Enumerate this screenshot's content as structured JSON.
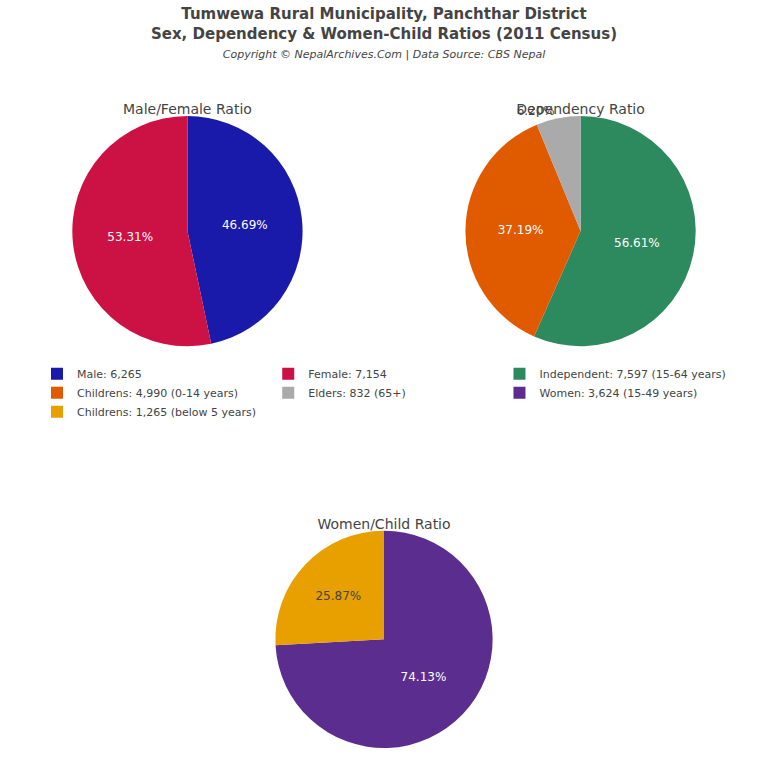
{
  "title": "Tumwewa Rural Municipality, Panchthar District",
  "subtitle": "Sex, Dependency & Women-Child Ratios (2011 Census)",
  "annotations": [
    "Copyright © NepalArchives.Com | Data Source: CBS Nepal"
  ],
  "legend": "center",
  "chart_data": [
    {
      "type": "pie",
      "title": "Male/Female Ratio",
      "categories": [
        "Male: 6,265",
        "Female: 7,154"
      ],
      "values": [
        46.69,
        53.31
      ],
      "value_labels": [
        "46.69%",
        "53.31%"
      ],
      "colors": [
        "#1a1aaa",
        "#cc1144"
      ],
      "data_labels": true
    },
    {
      "type": "pie",
      "title": "Dependency Ratio",
      "categories": [
        "Independent: 7,597 (15-64 years)",
        "Childrens: 4,990 (0-14 years)",
        "Elders: 832 (65+)"
      ],
      "values": [
        56.61,
        37.19,
        6.2
      ],
      "value_labels": [
        "56.61%",
        "37.19%",
        "6.20%"
      ],
      "colors": [
        "#2d8a5e",
        "#e05a00",
        "#aaaaaa"
      ],
      "data_labels": true
    },
    {
      "type": "pie",
      "title": "Women/Child Ratio",
      "categories": [
        "Women: 3,624 (15-49 years)",
        "Childrens: 1,265 (below 5 years)"
      ],
      "values": [
        74.13,
        25.87
      ],
      "value_labels": [
        "74.13%",
        "25.87%"
      ],
      "colors": [
        "#5b2d8e",
        "#e8a000"
      ],
      "data_labels": true
    }
  ]
}
